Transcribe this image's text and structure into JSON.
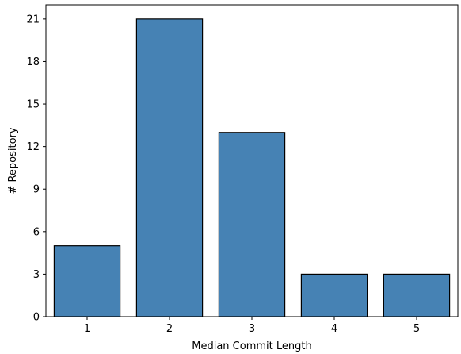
{
  "chart_data": {
    "type": "bar",
    "title": "",
    "xlabel": "Median Commit Length",
    "ylabel": "# Repository",
    "categories": [
      "1",
      "2",
      "3",
      "4",
      "5"
    ],
    "values": [
      5,
      21,
      13,
      3,
      3
    ],
    "ylim": [
      0,
      22
    ],
    "yticks": [
      0,
      3,
      6,
      9,
      12,
      15,
      18,
      21
    ],
    "bar_color": "#4682b4",
    "bar_edge_color": "#000000",
    "grid": false,
    "legend": "none"
  }
}
